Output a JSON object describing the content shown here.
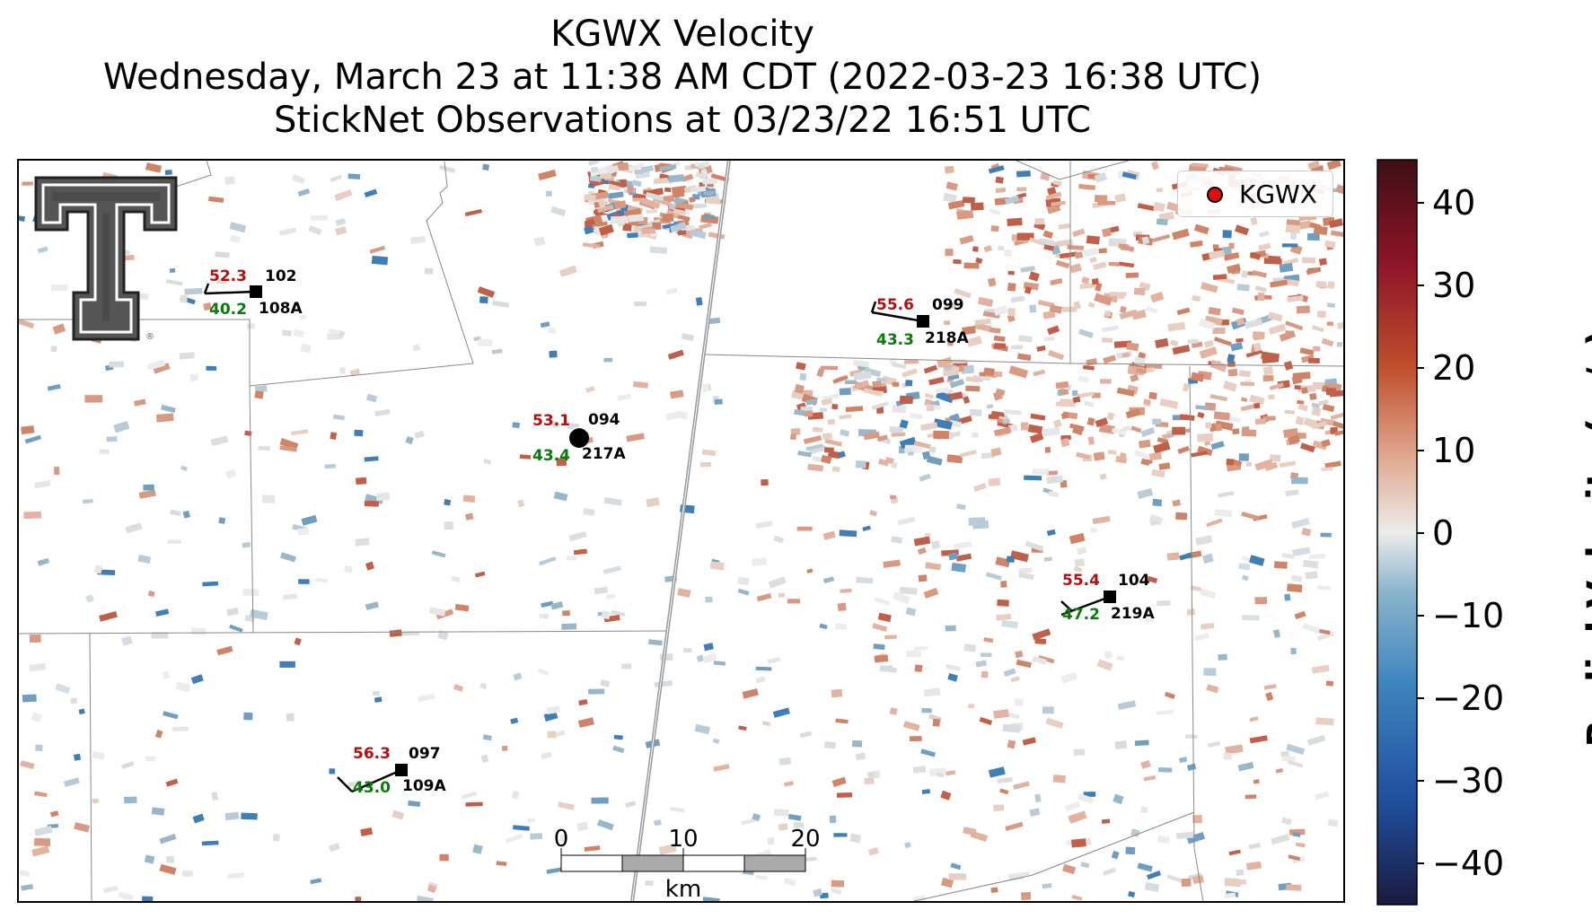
{
  "title": {
    "line1": "KGWX Velocity",
    "line2": "Wednesday, March 23 at 11:38 AM CDT (2022-03-23 16:38 UTC)",
    "line3": "StickNet Observations at 03/23/22 16:51 UTC"
  },
  "legend": {
    "label": "KGWX",
    "marker_color": "#e01010"
  },
  "colorbar": {
    "label": "Radial Velocity (m/s)",
    "ticks": [
      "40",
      "30",
      "20",
      "10",
      "0",
      "−10",
      "−20",
      "−30",
      "−40"
    ],
    "range": [
      -45,
      45
    ],
    "colors": [
      "#1a1a40",
      "#1f4f9e",
      "#3f86c0",
      "#8ab4cc",
      "#e8e8e8",
      "#e0a890",
      "#c0502d",
      "#8e1428",
      "#3e0f14"
    ]
  },
  "scale_bar": {
    "labels": [
      "0",
      "10",
      "20"
    ],
    "unit": "km"
  },
  "stations": [
    {
      "id": "102",
      "name": "108A",
      "red": "52.3",
      "green": "40.2"
    },
    {
      "id": "099",
      "name": "218A",
      "red": "55.6",
      "green": "43.3"
    },
    {
      "id": "094",
      "name": "217A",
      "red": "53.1",
      "green": "43.4"
    },
    {
      "id": "104",
      "name": "219A",
      "red": "55.4",
      "green": "47.2"
    },
    {
      "id": "097",
      "name": "109A",
      "red": "56.3",
      "green": "43.0"
    }
  ],
  "colors": {
    "red_value": "#b01010",
    "green_value": "#0a7a0a",
    "border": "#888888",
    "highway": "#999999"
  },
  "logo": {
    "icon": "texas-tech-double-t-logo",
    "mark": "®"
  }
}
